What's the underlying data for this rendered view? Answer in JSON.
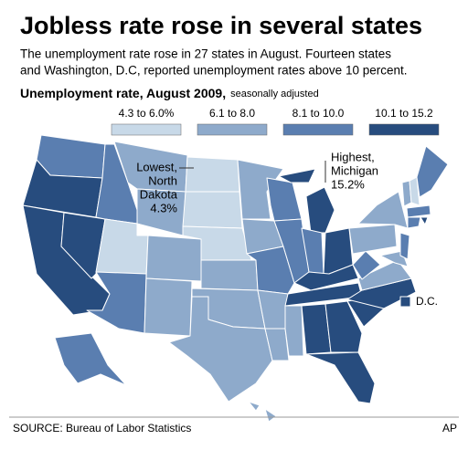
{
  "header": {
    "title": "Jobless rate rose in several states",
    "subtitle": [
      "The unemployment rate rose in 27 states in August. Fourteen states",
      "and Washington, D.C, reported unemployment rates above 10 percent."
    ]
  },
  "legend": {
    "title": "Unemployment rate, August 2009,",
    "note": "seasonally adjusted",
    "classes": [
      {
        "label": "4.3 to 6.0%",
        "color": "#c8d9e8"
      },
      {
        "label": "6.1 to 8.0",
        "color": "#8eaacb"
      },
      {
        "label": "8.1 to 10.0",
        "color": "#5a7eb0"
      },
      {
        "label": "10.1 to 15.2",
        "color": "#274c7e"
      }
    ]
  },
  "annotations": {
    "lowest": [
      "Lowest,",
      "North",
      "Dakota",
      "4.3%"
    ],
    "highest": [
      "Highest,",
      "Michigan",
      "15.2%"
    ],
    "dc": "D.C."
  },
  "footer": {
    "source": "SOURCE: Bureau of Labor Statistics",
    "credit": "AP"
  }
}
